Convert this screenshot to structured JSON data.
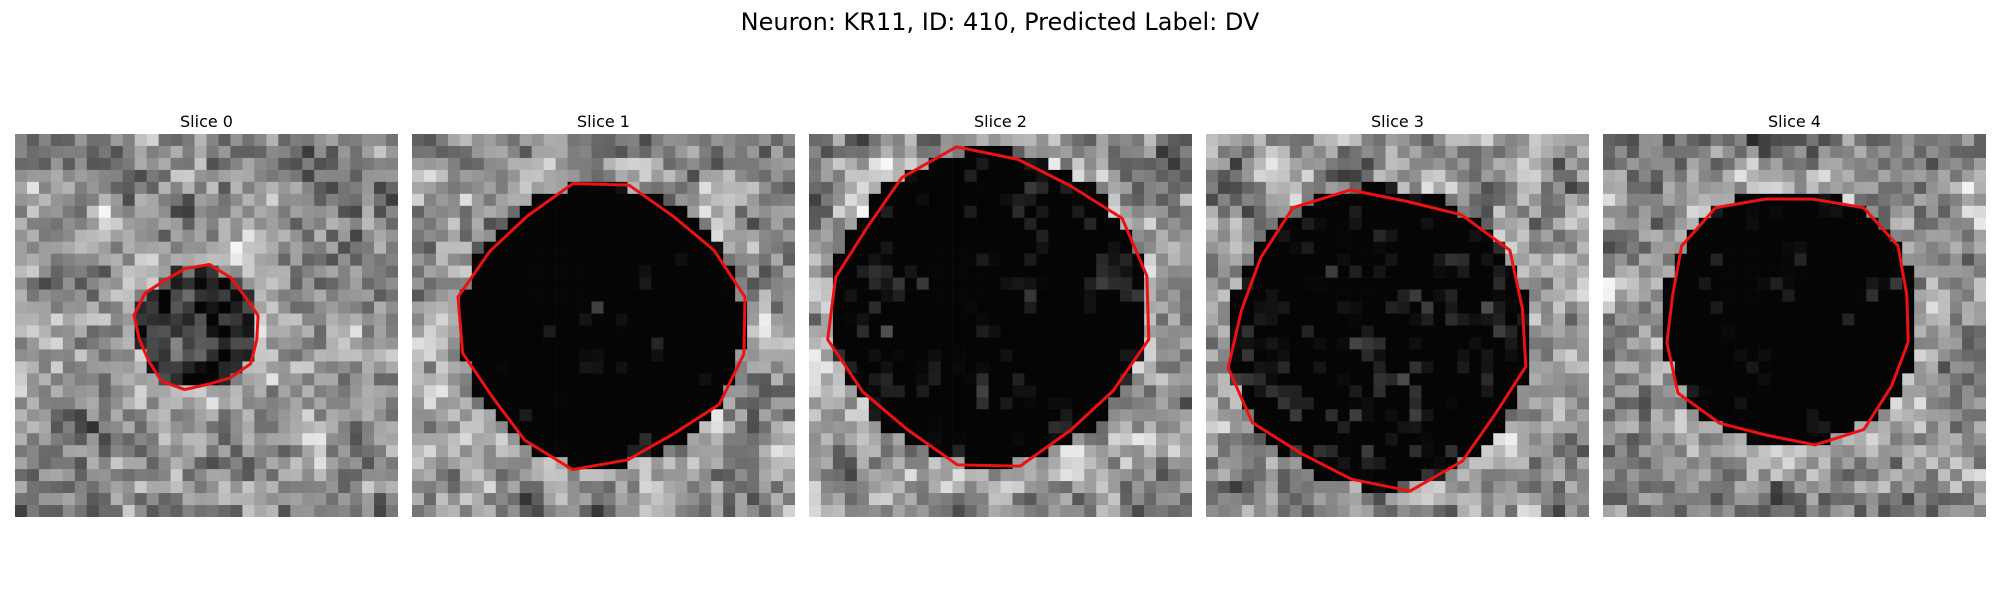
{
  "figure": {
    "title": "Neuron: KR11, ID: 410, Predicted Label: DV"
  },
  "outline_color": "#ee1111",
  "panels": [
    {
      "title": "Slice 0",
      "cell_radius": 5.2,
      "cell_cx": 15.2,
      "cell_cy": 16.2,
      "darkness": 0.45,
      "seed": 11
    },
    {
      "title": "Slice 1",
      "cell_radius": 11.8,
      "cell_cx": 15.8,
      "cell_cy": 16.0,
      "darkness": 0.85,
      "seed": 23
    },
    {
      "title": "Slice 2",
      "cell_radius": 13.2,
      "cell_cx": 15.0,
      "cell_cy": 14.5,
      "darkness": 0.75,
      "seed": 37
    },
    {
      "title": "Slice 3",
      "cell_radius": 12.6,
      "cell_cx": 14.5,
      "cell_cy": 17.0,
      "darkness": 0.7,
      "seed": 41
    },
    {
      "title": "Slice 4",
      "cell_radius": 10.8,
      "cell_cx": 15.6,
      "cell_cy": 15.4,
      "darkness": 0.8,
      "seed": 53
    }
  ]
}
